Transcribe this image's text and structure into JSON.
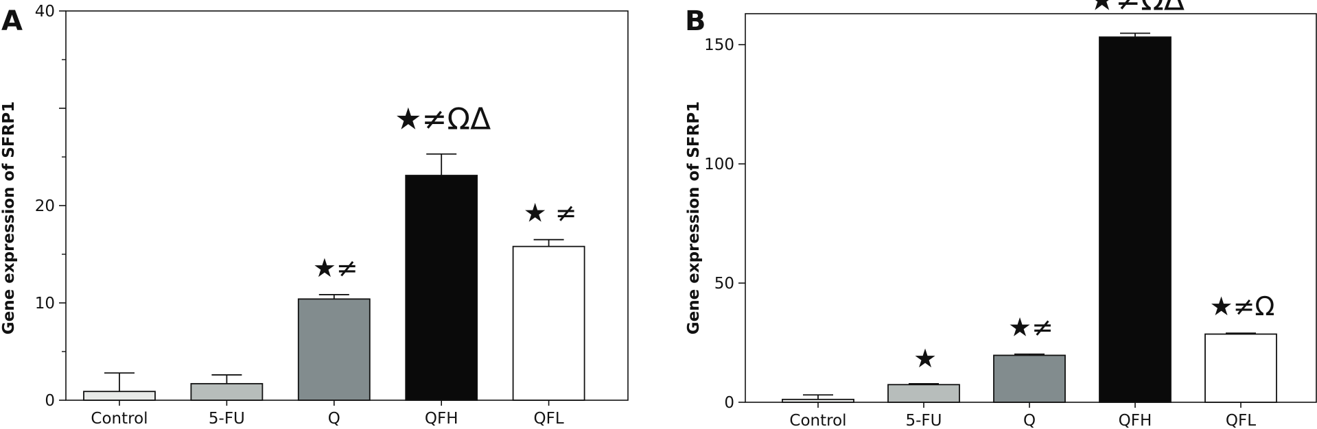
{
  "chart_data": [
    {
      "panel": "A",
      "type": "bar",
      "categories": [
        "Control",
        "5-FU",
        "Q",
        "QFH",
        "QFL"
      ],
      "values": [
        0.9,
        1.7,
        10.4,
        23.1,
        15.8
      ],
      "errors": [
        1.9,
        0.9,
        0.45,
        2.2,
        0.7
      ],
      "colors": [
        "#e8eae8",
        "#b7bdbb",
        "#828c8e",
        "#0a0a0a",
        "#ffffff"
      ],
      "annotations": [
        "",
        "",
        "★≠",
        "★≠ΩΔ",
        "★ ≠"
      ],
      "xlabel": "",
      "ylabel": "Gene expression of SFRP1",
      "ylim": [
        0,
        40
      ],
      "yticks": [
        0,
        10,
        20,
        30,
        40
      ],
      "ytick_labels": [
        "0",
        "10",
        "20",
        "",
        "40"
      ],
      "grid": false
    },
    {
      "panel": "B",
      "type": "bar",
      "categories": [
        "Control",
        "5-FU",
        "Q",
        "QFH",
        "QFL"
      ],
      "values": [
        1.2,
        7.4,
        19.7,
        153.2,
        28.6
      ],
      "errors": [
        1.9,
        0.4,
        0.5,
        1.6,
        0.4
      ],
      "colors": [
        "#e8eae8",
        "#b7bdbb",
        "#828c8e",
        "#0a0a0a",
        "#ffffff"
      ],
      "annotations": [
        "",
        "★",
        "★≠",
        "★≠ΩΔ",
        "★≠Ω"
      ],
      "xlabel": "",
      "ylabel": "Gene expression of SFRP1",
      "ylim": [
        0,
        163
      ],
      "yticks": [
        0,
        50,
        100,
        150
      ],
      "ytick_labels": [
        "0",
        "50",
        "100",
        "150"
      ],
      "grid": false
    }
  ]
}
